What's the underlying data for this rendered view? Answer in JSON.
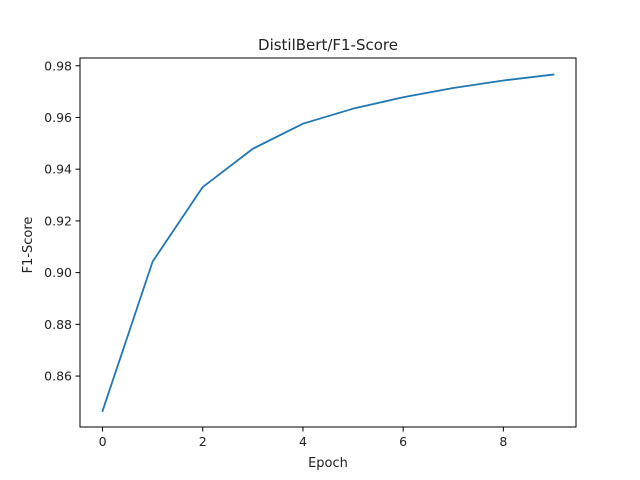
{
  "chart_data": {
    "type": "line",
    "title": "DistilBert/F1-Score",
    "xlabel": "Epoch",
    "ylabel": "F1-Score",
    "x": [
      0,
      1,
      2,
      3,
      4,
      5,
      6,
      7,
      8,
      9
    ],
    "series": [
      {
        "values": [
          0.8465,
          0.9043,
          0.9331,
          0.9479,
          0.9576,
          0.9634,
          0.9678,
          0.9714,
          0.9743,
          0.9766
        ],
        "color": "#1f77b4"
      }
    ],
    "xlim": [
      -0.45,
      9.45
    ],
    "ylim": [
      0.8403,
      0.983
    ],
    "xticks": [
      0,
      2,
      4,
      6,
      8
    ],
    "yticks": [
      0.86,
      0.88,
      0.9,
      0.92,
      0.94,
      0.96,
      0.98
    ],
    "xtick_labels": [
      "0",
      "2",
      "4",
      "6",
      "8"
    ],
    "ytick_labels": [
      "0.86",
      "0.88",
      "0.90",
      "0.92",
      "0.94",
      "0.96",
      "0.98"
    ],
    "grid": false,
    "legend": "none"
  }
}
